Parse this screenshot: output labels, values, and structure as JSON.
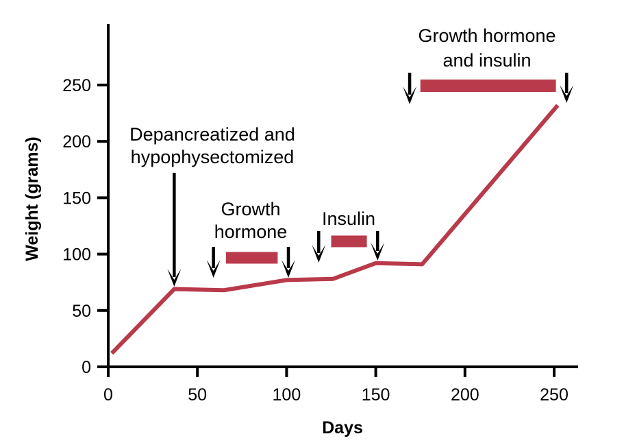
{
  "chart_data": {
    "type": "line",
    "title": "",
    "xlabel": "Days",
    "ylabel": "Weight (grams)",
    "xlim": [
      0,
      260
    ],
    "ylim": [
      0,
      300
    ],
    "xticks": [
      0,
      50,
      100,
      150,
      200,
      250
    ],
    "yticks": [
      0,
      50,
      100,
      150,
      200,
      250
    ],
    "grid": false,
    "legend": null,
    "series": [
      {
        "name": "Weight",
        "color": "#b93a4a",
        "x": [
          2,
          37,
          65,
          100,
          126,
          150,
          176,
          252
        ],
        "y": [
          12,
          69,
          68,
          77,
          78,
          92,
          91,
          232
        ]
      }
    ],
    "annotations": [
      {
        "id": "depancreatized",
        "lines": [
          "Depancreatized and",
          "hypophysectomized"
        ],
        "arrow_day": 37,
        "treatment_bar": null
      },
      {
        "id": "growth-hormone",
        "lines": [
          "Growth",
          "hormone"
        ],
        "arrow_start_day": 59,
        "arrow_end_day": 101,
        "treatment_bar": [
          66,
          95
        ]
      },
      {
        "id": "insulin",
        "lines": [
          "Insulin"
        ],
        "arrow_start_day": 118,
        "arrow_end_day": 151,
        "treatment_bar": [
          125,
          145
        ]
      },
      {
        "id": "growth-hormone-and-insulin",
        "lines": [
          "Growth hormone",
          "and insulin"
        ],
        "arrow_start_day": 169,
        "arrow_end_day": 257,
        "treatment_bar": [
          175,
          251
        ]
      }
    ]
  },
  "colors": {
    "line": "#b93a4a",
    "axis": "#000000",
    "arrow": "#000000"
  }
}
